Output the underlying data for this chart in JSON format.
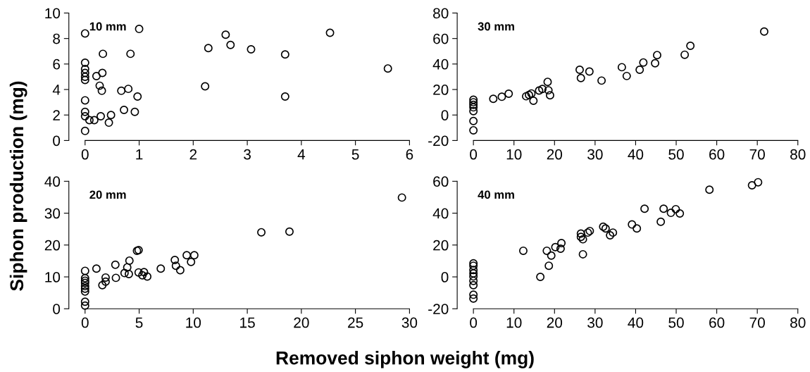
{
  "chart_data": [
    {
      "type": "scatter",
      "ylabel": "Siphon production (mg)",
      "annotations": [
        "10 mm"
      ],
      "marker": "circle",
      "color": "#000000",
      "xlim": [
        -0.3,
        6
      ],
      "ylim": [
        0,
        10
      ],
      "xticks": [
        0,
        1,
        2,
        3,
        4,
        5,
        6
      ],
      "yticks": [
        0,
        2,
        4,
        6,
        8,
        10
      ],
      "x": [
        0,
        1.0,
        0,
        0,
        0,
        0,
        0,
        0,
        0,
        0,
        0,
        0.08,
        0.17,
        0.33,
        0.21,
        0.32,
        0.27,
        0.31,
        0.29,
        0.48,
        0.44,
        0.84,
        0.67,
        0.8,
        0.97,
        0.72,
        0.92,
        2.22,
        2.28,
        2.6,
        2.69,
        3.07,
        3.7,
        3.7,
        4.53,
        5.6
      ],
      "values": [
        8.4,
        8.75,
        6.1,
        5.6,
        5.3,
        5.0,
        4.75,
        3.15,
        2.25,
        1.9,
        0.75,
        1.6,
        1.6,
        6.8,
        5.05,
        5.3,
        4.3,
        3.9,
        1.9,
        2.0,
        1.4,
        6.8,
        3.9,
        4.05,
        3.45,
        2.4,
        2.25,
        4.25,
        7.25,
        8.3,
        7.5,
        7.15,
        6.75,
        3.45,
        8.45,
        5.65
      ]
    },
    {
      "type": "scatter",
      "annotations": [
        "30 mm"
      ],
      "marker": "circle",
      "color": "#000000",
      "xlim": [
        -4,
        80
      ],
      "ylim": [
        -20,
        80
      ],
      "xticks": [
        0,
        10,
        20,
        30,
        40,
        50,
        60,
        70,
        80
      ],
      "yticks": [
        -20,
        0,
        20,
        40,
        60,
        80
      ],
      "x": [
        0,
        0,
        0,
        0,
        0,
        0,
        0,
        4.9,
        7,
        8.7,
        13,
        13.7,
        14.3,
        14.8,
        16.2,
        17,
        18.3,
        18.5,
        18.9,
        26.2,
        26.5,
        28.6,
        31.6,
        36.6,
        37.8,
        41,
        41.9,
        44.8,
        45.3,
        52.1,
        53.5,
        71.7
      ],
      "values": [
        12,
        10,
        8,
        6,
        3,
        -4.7,
        -12,
        12.7,
        14.3,
        16.7,
        14.7,
        15.7,
        16.9,
        11.2,
        19.2,
        20.4,
        26,
        19.4,
        15.5,
        35.5,
        29,
        34.1,
        27,
        37.5,
        30.6,
        35.5,
        41.2,
        40.6,
        47,
        47.3,
        54.3,
        65.5
      ]
    },
    {
      "type": "scatter",
      "xlabel": "Removed siphon weight (mg)",
      "annotations": [
        "20 mm"
      ],
      "marker": "circle",
      "color": "#000000",
      "xlim": [
        -1.5,
        30
      ],
      "ylim": [
        0,
        40
      ],
      "xticks": [
        0,
        5,
        10,
        15,
        20,
        25,
        30
      ],
      "yticks": [
        0,
        10,
        20,
        30,
        40
      ],
      "x": [
        0,
        0,
        0,
        0,
        0,
        0,
        0,
        0,
        0,
        1.05,
        1.9,
        1.6,
        1.9,
        2.8,
        2.85,
        3.65,
        3.9,
        4.1,
        4.05,
        4.8,
        4.95,
        4.95,
        5.45,
        5.3,
        5.75,
        7,
        8.3,
        8.4,
        8.8,
        9.4,
        9.8,
        10.1,
        16.3,
        18.9,
        29.3
      ],
      "values": [
        11.9,
        9.6,
        8.8,
        8.1,
        7.1,
        6.3,
        5.4,
        2.2,
        1.0,
        12.6,
        9.8,
        7.4,
        8.5,
        13.8,
        9.7,
        11.2,
        13,
        15.1,
        10.9,
        18.2,
        18.4,
        11.4,
        11.5,
        10.5,
        10.1,
        12.6,
        15.3,
        13.5,
        12.1,
        16.8,
        14.7,
        16.8,
        24,
        24.2,
        34.9
      ]
    },
    {
      "type": "scatter",
      "annotations": [
        "40 mm"
      ],
      "marker": "circle",
      "color": "#000000",
      "xlim": [
        -4,
        80
      ],
      "ylim": [
        -20,
        60
      ],
      "xticks": [
        0,
        10,
        20,
        30,
        40,
        50,
        60,
        70,
        80
      ],
      "yticks": [
        -20,
        0,
        20,
        40,
        60
      ],
      "x": [
        0,
        0,
        0,
        0,
        0,
        0,
        0,
        0,
        0,
        12.3,
        16.5,
        18.1,
        18.6,
        19.2,
        20.2,
        21.5,
        21.7,
        26.5,
        26.5,
        27,
        27,
        28.2,
        28.7,
        32,
        32.6,
        33.7,
        34.4,
        39.1,
        40.3,
        42.2,
        46.2,
        46.9,
        48.7,
        49.9,
        50.9,
        58.2,
        68.7,
        70.2
      ],
      "values": [
        8.5,
        7,
        4.3,
        2.2,
        0.3,
        -2.5,
        -5.2,
        -11.2,
        -13.6,
        16.4,
        0,
        16.4,
        7,
        13.4,
        18.7,
        17.7,
        21.2,
        27.2,
        25.1,
        23.6,
        14.2,
        27.8,
        28.8,
        31.5,
        30.4,
        26.1,
        27.8,
        32.9,
        30.4,
        42.8,
        34.6,
        42.8,
        40.2,
        42.5,
        39.8,
        54.7,
        57.5,
        59.4
      ]
    }
  ]
}
